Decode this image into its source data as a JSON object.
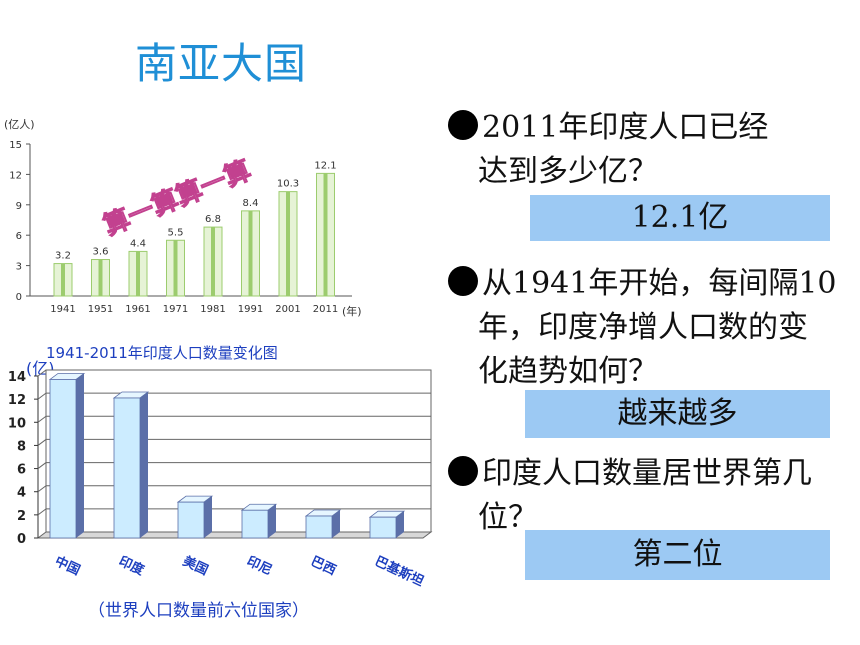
{
  "page_title": "南亚大国",
  "chart_data": [
    {
      "type": "bar",
      "title": "",
      "stamp": "算一算算一算",
      "ylabel": "(亿人)",
      "xlabel": "(年)",
      "ylim": [
        0,
        15
      ],
      "yticks": [
        "0",
        "3",
        "6",
        "9",
        "12",
        "15"
      ],
      "categories": [
        "1941",
        "1951",
        "1961",
        "1971",
        "1981",
        "1991",
        "2001",
        "2011"
      ],
      "values": [
        3.2,
        3.6,
        4.4,
        5.5,
        6.8,
        8.4,
        10.3,
        12.1
      ],
      "data_labels": [
        "3.2",
        "3.6",
        "4.4",
        "5.5",
        "6.8",
        "8.4",
        "10.3",
        "12.1"
      ],
      "colors": {
        "bar_light": "#e6f3d6",
        "bar_dark": "#9ccc6e",
        "axis": "#555555"
      }
    },
    {
      "type": "bar",
      "title": "1941-2011年印度人口数量变化图",
      "ylabel": "(亿)",
      "caption": "（世界人口数量前六位国家）",
      "ylim": [
        0,
        14
      ],
      "yticks": [
        "0",
        "2",
        "4",
        "6",
        "8",
        "10",
        "12",
        "14"
      ],
      "categories": [
        "中国",
        "印度",
        "美国",
        "印尼",
        "巴西",
        "巴基斯坦"
      ],
      "values": [
        13.7,
        12.1,
        3.1,
        2.4,
        1.9,
        1.8
      ],
      "colors": {
        "bar_front": "#ccecff",
        "bar_side": "#5b6fa8",
        "category_text": "#1d3fbf",
        "grid": "#666666"
      }
    }
  ],
  "questions": [
    {
      "text_line1": "2011年印度人口已经",
      "text_line2": "达到多少亿？",
      "answer": "12.1亿"
    },
    {
      "text_line1": "从1941年开始，每间隔10",
      "text_line2": "年，印度净增人口数的变",
      "text_line3": "化趋势如何？",
      "answer": "越来越多"
    },
    {
      "text_line1": "印度人口数量居世界第几",
      "text_line2": "位？",
      "answer": "第二位"
    }
  ]
}
